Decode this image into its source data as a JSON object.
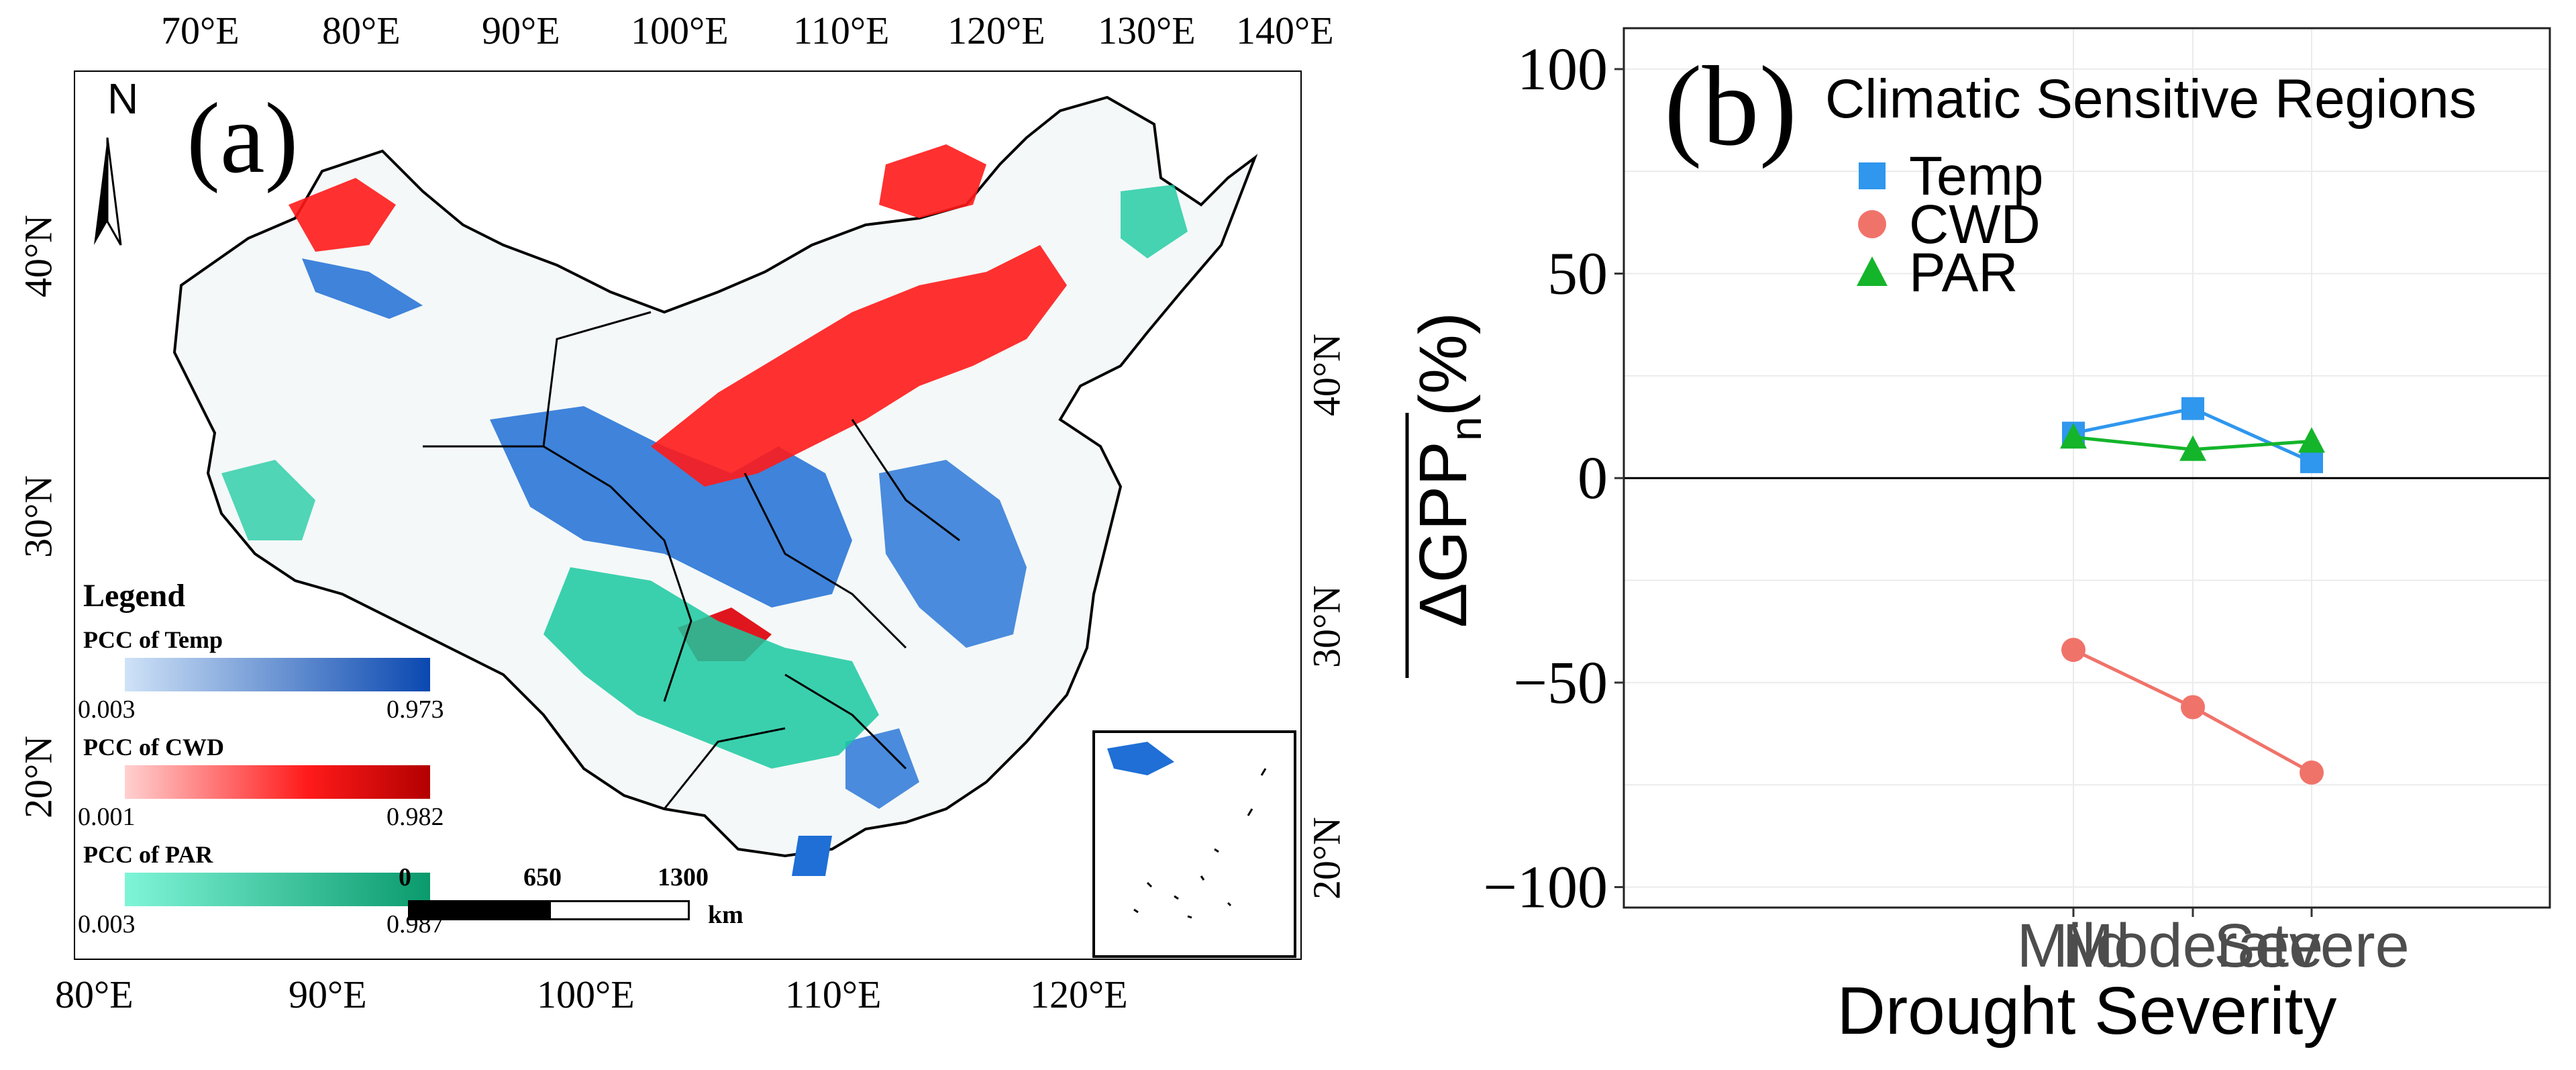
{
  "panel_a": {
    "label": "(a)",
    "north": "N",
    "top_ticks": [
      "70°E",
      "80°E",
      "90°E",
      "100°E",
      "110°E",
      "120°E",
      "130°E",
      "140°E"
    ],
    "bottom_ticks": [
      "80°E",
      "90°E",
      "100°E",
      "110°E",
      "120°E"
    ],
    "left_ticks": [
      "40°N",
      "30°N",
      "20°N"
    ],
    "right_ticks": [
      "40°N",
      "30°N",
      "20°N"
    ],
    "legend": {
      "title": "Legend",
      "items": [
        {
          "label": "PCC of Temp",
          "min": "0.003",
          "max": "0.973",
          "from": "#cfe2f7",
          "to": "#0a48b0"
        },
        {
          "label": "PCC of CWD",
          "min": "0.001",
          "max": "0.982",
          "from": "#ffd0d0",
          "to": "#b30000"
        },
        {
          "label": "PCC of PAR",
          "min": "0.003",
          "max": "0.987",
          "from": "#7ff5d8",
          "to": "#0a9a6c"
        }
      ]
    },
    "scale_bar": {
      "t0": "0",
      "t1": "650",
      "t2": "1300",
      "unit": "km"
    },
    "colors": {
      "temp": "#1f6fd6",
      "cwd": "#ff1a1a",
      "par": "#19c9a0"
    }
  },
  "chart_data": {
    "type": "line",
    "panel_label": "(b)",
    "title": "Climatic Sensitive Regions",
    "categories": [
      "Mild",
      "Moderate",
      "Severe"
    ],
    "xlabel": "Drought Severity",
    "ylabel": "ΔGPP",
    "ylabel_sub": "n",
    "ylabel_unit": "(%)",
    "ylim": [
      -105,
      110
    ],
    "yticks": [
      100,
      50,
      0,
      -50,
      -100
    ],
    "ytick_labels": [
      "100",
      "50",
      "0",
      "−50",
      "−100"
    ],
    "series": [
      {
        "name": "Temp",
        "values": [
          11,
          17,
          4
        ],
        "color": "#2f97ee",
        "marker": "square"
      },
      {
        "name": "CWD",
        "values": [
          -42,
          -56,
          -72
        ],
        "color": "#f0736a",
        "marker": "circle"
      },
      {
        "name": "PAR",
        "values": [
          10,
          7,
          9
        ],
        "color": "#14b52a",
        "marker": "triangle"
      }
    ]
  }
}
